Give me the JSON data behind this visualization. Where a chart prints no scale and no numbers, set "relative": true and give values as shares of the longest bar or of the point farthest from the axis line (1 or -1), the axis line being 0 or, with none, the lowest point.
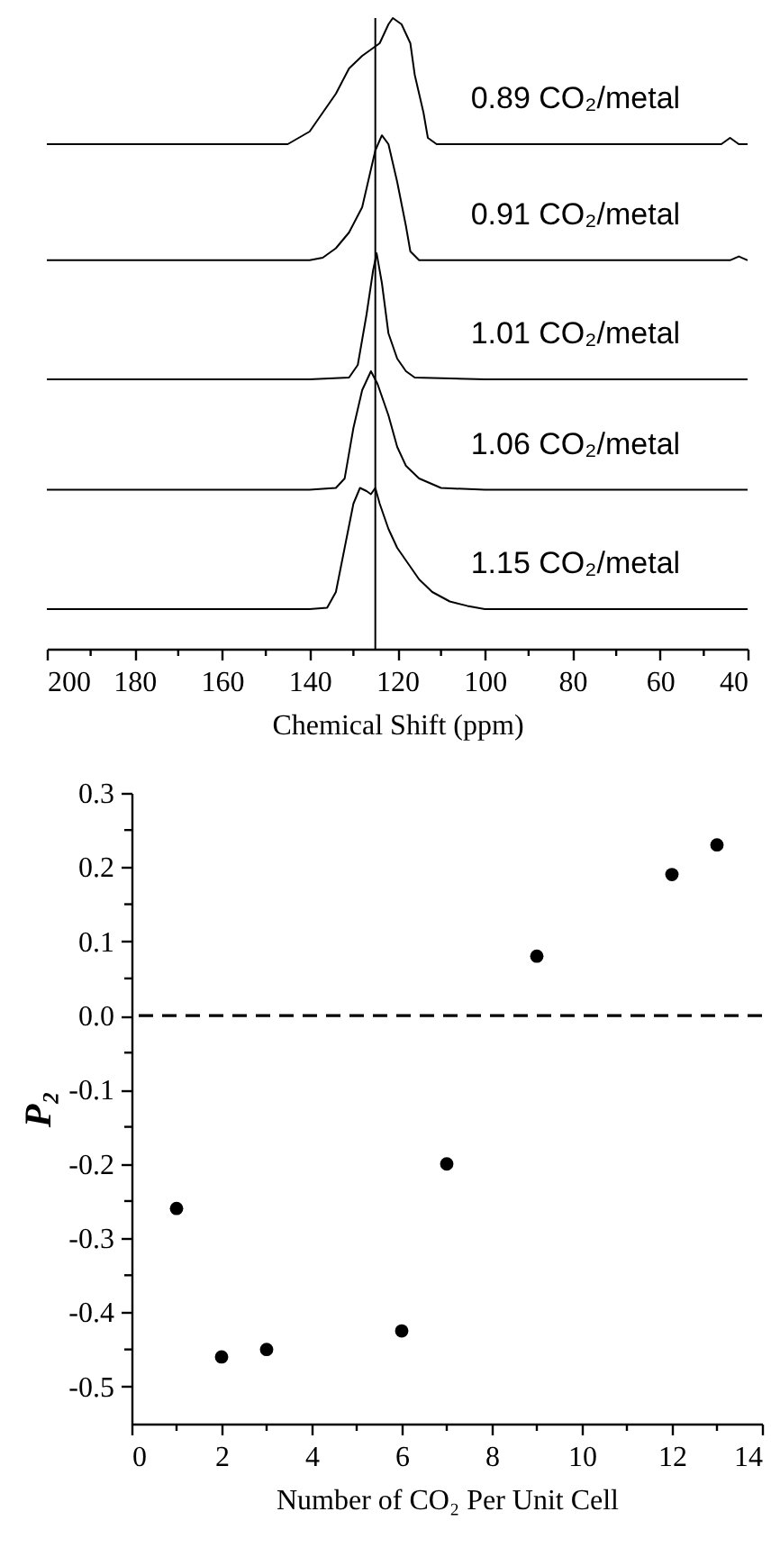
{
  "chart_data": [
    {
      "type": "line",
      "relative": true,
      "xlabel": "Chemical Shift (ppm)",
      "xlim": [
        200,
        40
      ],
      "xticks": [
        200,
        {
          "value": 190,
          "label": null
        },
        180,
        {
          "value": 170,
          "label": null
        },
        160,
        {
          "value": 150,
          "label": null
        },
        140,
        {
          "value": 130,
          "label": null
        },
        120,
        {
          "value": 110,
          "label": null
        },
        100,
        {
          "value": 90,
          "label": null
        },
        80,
        {
          "value": 70,
          "label": null
        },
        60,
        {
          "value": 50,
          "label": null
        },
        40
      ],
      "ref_lines": [
        {
          "axis": "x",
          "value": 125,
          "color": "#000000",
          "line_style": "solid"
        }
      ],
      "series": [
        {
          "name": "0.89 CO₂/metal",
          "color": "#000000",
          "x": [
            200,
            180,
            160,
            150,
            145,
            140,
            137,
            134,
            131,
            128,
            126,
            124,
            122,
            121,
            119,
            117,
            116,
            114,
            113,
            111,
            100,
            80,
            60,
            46,
            44,
            42,
            40
          ],
          "values": [
            0.8,
            0.8,
            0.8,
            0.8,
            0.8,
            0.82,
            0.85,
            0.88,
            0.92,
            0.94,
            0.95,
            0.96,
            0.99,
            1.0,
            0.99,
            0.96,
            0.91,
            0.85,
            0.81,
            0.8,
            0.8,
            0.8,
            0.8,
            0.8,
            0.81,
            0.8,
            0.8
          ]
        },
        {
          "name": "0.91 CO₂/metal",
          "color": "#000000",
          "x": [
            200,
            180,
            160,
            140,
            137,
            134,
            131,
            128,
            126,
            125,
            123.5,
            122,
            120,
            118,
            117,
            115,
            100,
            80,
            60,
            44,
            42,
            40
          ],
          "values": [
            0.616,
            0.616,
            0.616,
            0.616,
            0.62,
            0.635,
            0.66,
            0.7,
            0.76,
            0.79,
            0.814,
            0.8,
            0.74,
            0.67,
            0.63,
            0.616,
            0.616,
            0.616,
            0.616,
            0.616,
            0.622,
            0.616
          ]
        },
        {
          "name": "1.01 CO₂/metal",
          "color": "#000000",
          "x": [
            200,
            180,
            160,
            140,
            131,
            129,
            127,
            125.5,
            124.7,
            123.5,
            122,
            120,
            118,
            116,
            100,
            80,
            60,
            40
          ],
          "values": [
            0.427,
            0.427,
            0.427,
            0.427,
            0.43,
            0.45,
            0.53,
            0.6,
            0.627,
            0.58,
            0.5,
            0.46,
            0.44,
            0.43,
            0.427,
            0.427,
            0.427,
            0.427
          ]
        },
        {
          "name": "1.06 CO₂/metal",
          "color": "#000000",
          "x": [
            200,
            180,
            160,
            140,
            134,
            132,
            130,
            128,
            126,
            124.5,
            122,
            120,
            118,
            115,
            110,
            100,
            80,
            60,
            40
          ],
          "values": [
            0.252,
            0.252,
            0.252,
            0.252,
            0.255,
            0.27,
            0.35,
            0.41,
            0.44,
            0.42,
            0.37,
            0.32,
            0.29,
            0.27,
            0.255,
            0.252,
            0.252,
            0.252,
            0.252
          ]
        },
        {
          "name": "1.15 CO₂/metal",
          "color": "#000000",
          "x": [
            200,
            180,
            160,
            140,
            136,
            134,
            132,
            130,
            128.5,
            127,
            126,
            125,
            124,
            122,
            120,
            118,
            115,
            112,
            108,
            104,
            100,
            80,
            60,
            40
          ],
          "values": [
            0.063,
            0.063,
            0.063,
            0.063,
            0.065,
            0.09,
            0.16,
            0.23,
            0.255,
            0.25,
            0.245,
            0.255,
            0.23,
            0.19,
            0.16,
            0.14,
            0.11,
            0.09,
            0.075,
            0.068,
            0.063,
            0.063,
            0.063,
            0.063
          ]
        }
      ]
    },
    {
      "type": "scatter",
      "xlabel": "Number of CO₂ Per Unit Cell",
      "ylabel": "P₂",
      "marker": "circle",
      "xlim": [
        0,
        14
      ],
      "xticks": [
        0,
        {
          "value": 1,
          "label": null
        },
        2,
        {
          "value": 3,
          "label": null
        },
        4,
        {
          "value": 5,
          "label": null
        },
        6,
        {
          "value": 7,
          "label": null
        },
        8,
        {
          "value": 9,
          "label": null
        },
        10,
        {
          "value": 11,
          "label": null
        },
        12,
        {
          "value": 13,
          "label": null
        },
        14
      ],
      "ylim": [
        -0.55,
        0.3
      ],
      "yticks": [
        -0.5,
        {
          "value": -0.45,
          "label": null
        },
        -0.4,
        {
          "value": -0.35,
          "label": null
        },
        -0.3,
        {
          "value": -0.25,
          "label": null
        },
        -0.2,
        {
          "value": -0.15,
          "label": null
        },
        -0.1,
        {
          "value": -0.05,
          "label": null
        },
        {
          "value": 0,
          "label": "0.0"
        },
        {
          "value": 0.05,
          "label": null
        },
        0.1,
        {
          "value": 0.15,
          "label": null
        },
        0.2,
        {
          "value": 0.25,
          "label": null
        },
        0.3
      ],
      "ref_lines": [
        {
          "axis": "y",
          "value": 0,
          "color": "#000000",
          "line_style": "dashed"
        }
      ],
      "x": [
        1,
        2,
        3,
        6,
        7,
        9,
        12,
        13
      ],
      "series": [
        {
          "color": "#000000",
          "values": [
            -0.26,
            -0.46,
            -0.45,
            -0.425,
            -0.2,
            0.08,
            0.19,
            0.23
          ]
        }
      ]
    }
  ]
}
